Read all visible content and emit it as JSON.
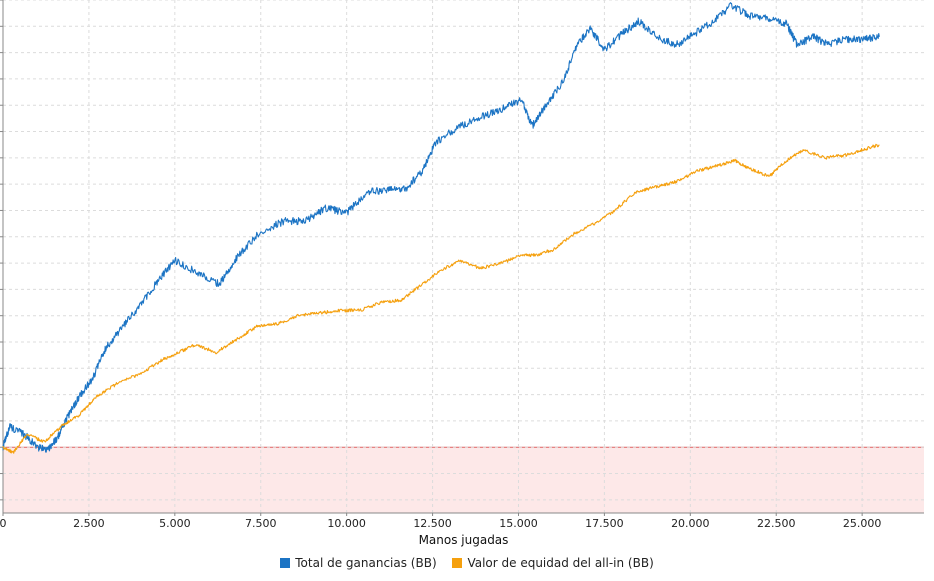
{
  "chart_data": {
    "type": "line",
    "title": "",
    "xlabel": "Manos jugadas",
    "ylabel": "",
    "xlim": [
      0,
      26800
    ],
    "ylim": [
      -3.5,
      16
    ],
    "x_ticks": [
      0,
      2500,
      5000,
      7500,
      10000,
      12500,
      15000,
      17500,
      20000,
      22500,
      25000
    ],
    "x_tick_labels": [
      "0",
      "2.500",
      "5.000",
      "7.500",
      "10.000",
      "12.500",
      "15.000",
      "17.500",
      "20.000",
      "22.500",
      "25.000"
    ],
    "y_grid_step": 1,
    "grid": true,
    "negative_band": {
      "from": -3.5,
      "to": -1,
      "color": "#fde8e8",
      "border": "#e06060"
    },
    "legend_placement": "bottom-center",
    "series": [
      {
        "name": "Total de ganancias (BB)",
        "color": "#1c74c4",
        "points": [
          [
            0,
            -1
          ],
          [
            200,
            -0.2
          ],
          [
            700,
            -0.6
          ],
          [
            1000,
            -1
          ],
          [
            1300,
            -1.1
          ],
          [
            1600,
            -0.6
          ],
          [
            1900,
            0.2
          ],
          [
            2200,
            0.9
          ],
          [
            2600,
            1.6
          ],
          [
            3000,
            2.8
          ],
          [
            3500,
            3.6
          ],
          [
            4000,
            4.4
          ],
          [
            4500,
            5.3
          ],
          [
            5000,
            6.1
          ],
          [
            5700,
            5.6
          ],
          [
            6300,
            5.2
          ],
          [
            6800,
            6.2
          ],
          [
            7500,
            7.2
          ],
          [
            8200,
            7.6
          ],
          [
            8800,
            7.6
          ],
          [
            9400,
            8.1
          ],
          [
            10000,
            7.9
          ],
          [
            10600,
            8.7
          ],
          [
            11200,
            8.8
          ],
          [
            11700,
            8.8
          ],
          [
            12200,
            9.5
          ],
          [
            12600,
            10.6
          ],
          [
            13300,
            11.2
          ],
          [
            14000,
            11.6
          ],
          [
            14600,
            11.9
          ],
          [
            15100,
            12.2
          ],
          [
            15400,
            11.2
          ],
          [
            15800,
            12.0
          ],
          [
            16300,
            12.9
          ],
          [
            16700,
            14.3
          ],
          [
            17100,
            14.9
          ],
          [
            17500,
            14.1
          ],
          [
            18000,
            14.7
          ],
          [
            18500,
            15.2
          ],
          [
            19000,
            14.6
          ],
          [
            19600,
            14.3
          ],
          [
            20100,
            14.7
          ],
          [
            20700,
            15.2
          ],
          [
            21200,
            15.8
          ],
          [
            21700,
            15.4
          ],
          [
            22300,
            15.3
          ],
          [
            22800,
            15.1
          ],
          [
            23100,
            14.3
          ],
          [
            23600,
            14.6
          ],
          [
            24000,
            14.3
          ],
          [
            24500,
            14.5
          ],
          [
            25000,
            14.5
          ],
          [
            25500,
            14.6
          ]
        ]
      },
      {
        "name": "Valor de equidad del all-in (BB)",
        "color": "#f5a00e",
        "points": [
          [
            0,
            -1
          ],
          [
            300,
            -1.2
          ],
          [
            700,
            -0.5
          ],
          [
            1200,
            -0.8
          ],
          [
            1700,
            -0.2
          ],
          [
            2200,
            0.2
          ],
          [
            2700,
            0.9
          ],
          [
            3300,
            1.4
          ],
          [
            4000,
            1.8
          ],
          [
            4600,
            2.3
          ],
          [
            5100,
            2.6
          ],
          [
            5600,
            2.9
          ],
          [
            6200,
            2.6
          ],
          [
            6800,
            3.1
          ],
          [
            7400,
            3.6
          ],
          [
            8000,
            3.7
          ],
          [
            8600,
            4.0
          ],
          [
            9200,
            4.1
          ],
          [
            9800,
            4.2
          ],
          [
            10400,
            4.2
          ],
          [
            11000,
            4.5
          ],
          [
            11600,
            4.6
          ],
          [
            12100,
            5.1
          ],
          [
            12700,
            5.7
          ],
          [
            13300,
            6.1
          ],
          [
            13900,
            5.8
          ],
          [
            14500,
            6.0
          ],
          [
            15100,
            6.3
          ],
          [
            15500,
            6.3
          ],
          [
            16000,
            6.5
          ],
          [
            16600,
            7.1
          ],
          [
            17200,
            7.5
          ],
          [
            17800,
            8.0
          ],
          [
            18400,
            8.7
          ],
          [
            19000,
            8.9
          ],
          [
            19600,
            9.1
          ],
          [
            20200,
            9.5
          ],
          [
            20800,
            9.7
          ],
          [
            21300,
            9.9
          ],
          [
            21700,
            9.6
          ],
          [
            22300,
            9.3
          ],
          [
            22800,
            9.9
          ],
          [
            23300,
            10.3
          ],
          [
            23900,
            10.0
          ],
          [
            24500,
            10.1
          ],
          [
            25000,
            10.3
          ],
          [
            25500,
            10.5
          ]
        ]
      }
    ]
  }
}
